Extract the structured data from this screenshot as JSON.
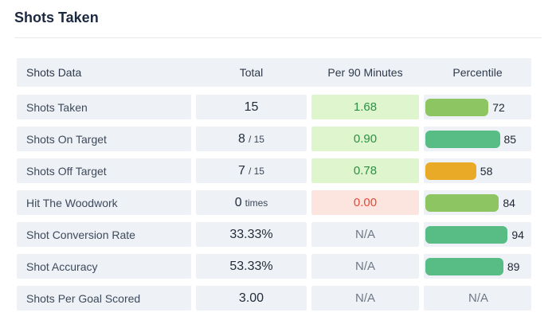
{
  "title": "Shots Taken",
  "colors": {
    "cell_bg": "#eef1f5",
    "per90_green_bg": "#def5cd",
    "per90_green_text": "#2c9144",
    "per90_red_bg": "#fde5df",
    "per90_red_text": "#df4b3b",
    "na_text": "#6e7887",
    "bar_lime": "#8dc563",
    "bar_teal": "#57bd84",
    "bar_amber": "#e9ab27"
  },
  "table": {
    "headers": [
      "Shots Data",
      "Total",
      "Per 90 Minutes",
      "Percentile"
    ],
    "rows": [
      {
        "label": "Shots Taken",
        "total": "15",
        "total_suffix": "",
        "per90": "1.68",
        "per90_type": "green",
        "percentile": 72,
        "bar": "lime"
      },
      {
        "label": "Shots On Target",
        "total": "8",
        "total_suffix": "/ 15",
        "per90": "0.90",
        "per90_type": "green",
        "percentile": 85,
        "bar": "teal"
      },
      {
        "label": "Shots Off Target",
        "total": "7",
        "total_suffix": "/ 15",
        "per90": "0.78",
        "per90_type": "green",
        "percentile": 58,
        "bar": "amber"
      },
      {
        "label": "Hit The Woodwork",
        "total": "0",
        "total_suffix": "times",
        "per90": "0.00",
        "per90_type": "red",
        "percentile": 84,
        "bar": "lime"
      },
      {
        "label": "Shot Conversion Rate",
        "total": "33.33%",
        "total_suffix": "",
        "per90": "N/A",
        "per90_type": "na",
        "percentile": 94,
        "bar": "teal"
      },
      {
        "label": "Shot Accuracy",
        "total": "53.33%",
        "total_suffix": "",
        "per90": "N/A",
        "per90_type": "na",
        "percentile": 89,
        "bar": "teal"
      },
      {
        "label": "Shots Per Goal Scored",
        "total": "3.00",
        "total_suffix": "",
        "per90": "N/A",
        "per90_type": "na",
        "percentile": "N/A",
        "bar": null
      }
    ]
  }
}
